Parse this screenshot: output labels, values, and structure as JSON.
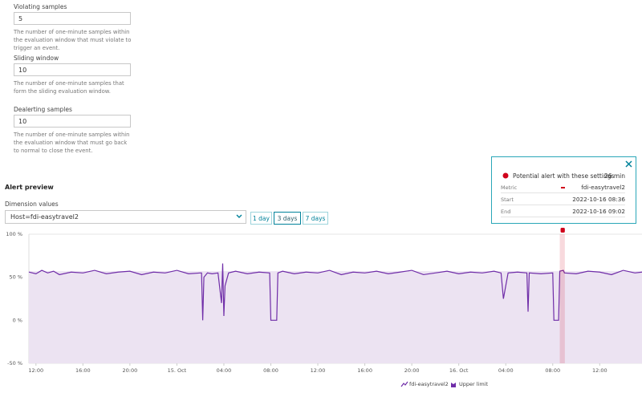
{
  "form": {
    "fields": [
      {
        "label": "Violating samples",
        "value": "5",
        "help": "The number of one-minute samples within the evaluation window that must violate to trigger an event."
      },
      {
        "label": "Sliding window",
        "value": "10",
        "help": "The number of one-minute samples that form the sliding evaluation window."
      },
      {
        "label": "Dealerting samples",
        "value": "10",
        "help": "The number of one-minute samples within the evaluation window that must go back to normal to close the event."
      }
    ]
  },
  "preview": {
    "title": "Alert preview",
    "dimension_label": "Dimension values",
    "dimension_value": "Host=fdi-easytravel2",
    "ranges": [
      "1 day",
      "3 days",
      "7 days"
    ],
    "selected_range": 1
  },
  "popup": {
    "title": "Potential alert with these settings",
    "duration": "26 min",
    "rows": [
      {
        "label": "Metric",
        "value": "fdi-easytravel2"
      },
      {
        "label": "Start",
        "value": "2022-10-16 08:36"
      },
      {
        "label": "End",
        "value": "2022-10-16 09:02"
      }
    ]
  },
  "chart_data": {
    "type": "line",
    "grid": true,
    "xlim": [
      -0.6,
      51.6
    ],
    "xticks": [
      {
        "value": 0,
        "label": "12:00"
      },
      {
        "value": 4,
        "label": "16:00"
      },
      {
        "value": 8,
        "label": "20:00"
      },
      {
        "value": 12,
        "label": "15. Oct"
      },
      {
        "value": 16,
        "label": "04:00"
      },
      {
        "value": 20,
        "label": "08:00"
      },
      {
        "value": 24,
        "label": "12:00"
      },
      {
        "value": 28,
        "label": "16:00"
      },
      {
        "value": 32,
        "label": "20:00"
      },
      {
        "value": 36,
        "label": "16. Oct"
      },
      {
        "value": 40,
        "label": "04:00"
      },
      {
        "value": 44,
        "label": "08:00"
      },
      {
        "value": 48,
        "label": "12:00"
      }
    ],
    "ylim": [
      -50,
      100
    ],
    "yticks": [
      {
        "value": -50,
        "label": "-50 %"
      },
      {
        "value": 0,
        "label": "0 %"
      },
      {
        "value": 50,
        "label": "50 %"
      },
      {
        "value": 100,
        "label": "100 %"
      }
    ],
    "alert": {
      "start": 44.6,
      "end": 45.03,
      "color": "#d0021b"
    },
    "series": [
      {
        "name": "Upper limit",
        "kind": "area",
        "color": "#ece3f2",
        "x": [
          -0.6,
          51.6
        ],
        "values": [
          57,
          57
        ]
      },
      {
        "name": "fdi-easytravel2",
        "kind": "line",
        "color": "#6f2da8",
        "x": [
          -0.6,
          0,
          0.5,
          1,
          1.5,
          2,
          3,
          4,
          5,
          6,
          7,
          8,
          9,
          10,
          11,
          12,
          13,
          14,
          14.1,
          14.2,
          14.3,
          14.6,
          15,
          15.5,
          15.8,
          15.9,
          16,
          16.1,
          16.4,
          17,
          18,
          19,
          19.9,
          20,
          20.5,
          20.6,
          21,
          22,
          23,
          24,
          25,
          26,
          27,
          28,
          29,
          30,
          31,
          32,
          33,
          34,
          35,
          36,
          37,
          38,
          39,
          39.6,
          39.8,
          40,
          40.2,
          41,
          41.8,
          41.9,
          42,
          43,
          44,
          44.1,
          44.5,
          44.6,
          44.9,
          45,
          46,
          47,
          48,
          49,
          50,
          51,
          51.6
        ],
        "values": [
          56,
          54,
          58,
          55,
          57,
          53,
          56,
          55,
          58,
          54,
          56,
          57,
          53,
          56,
          55,
          58,
          54,
          55,
          55,
          0,
          50,
          55,
          54,
          55,
          20,
          66,
          5,
          40,
          55,
          57,
          54,
          56,
          55,
          0,
          0,
          55,
          57,
          54,
          56,
          55,
          58,
          53,
          56,
          55,
          57,
          54,
          56,
          58,
          53,
          55,
          57,
          54,
          56,
          55,
          57,
          55,
          25,
          40,
          55,
          56,
          55,
          10,
          55,
          54,
          55,
          0,
          0,
          57,
          58,
          55,
          54,
          57,
          56,
          53,
          58,
          55,
          56
        ]
      }
    ]
  }
}
